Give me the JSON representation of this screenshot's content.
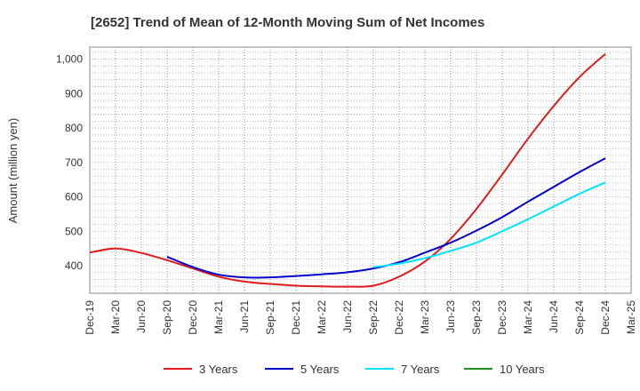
{
  "chart_data": {
    "type": "line",
    "title": "[2652]  Trend of Mean of 12-Month Moving Sum of Net Incomes",
    "xlabel": "",
    "ylabel": "Amount (million yen)",
    "ylim": [
      320,
      1035
    ],
    "yticks": [
      400,
      500,
      600,
      700,
      800,
      900,
      1000
    ],
    "ytick_labels": [
      "400",
      "500",
      "600",
      "700",
      "800",
      "900",
      "1,000"
    ],
    "categories": [
      "Dec-19",
      "Mar-20",
      "Jun-20",
      "Sep-20",
      "Dec-20",
      "Mar-21",
      "Jun-21",
      "Sep-21",
      "Dec-21",
      "Mar-22",
      "Jun-22",
      "Sep-22",
      "Dec-22",
      "Mar-23",
      "Jun-23",
      "Sep-23",
      "Dec-23",
      "Mar-24",
      "Jun-24",
      "Sep-24",
      "Dec-24",
      "Mar-25"
    ],
    "grid": true,
    "legend_position": "bottom",
    "series": [
      {
        "name": "3 Years",
        "color": "#e31a1c",
        "values": [
          438,
          450,
          437,
          416,
          392,
          368,
          354,
          347,
          342,
          340,
          339,
          342,
          368,
          412,
          478,
          565,
          665,
          769,
          864,
          948,
          1015,
          null
        ]
      },
      {
        "name": "5 Years",
        "color": "#0000cc",
        "values": [
          null,
          null,
          null,
          426,
          396,
          374,
          366,
          366,
          370,
          375,
          381,
          392,
          410,
          438,
          467,
          502,
          541,
          586,
          629,
          672,
          712,
          null
        ]
      },
      {
        "name": "7 Years",
        "color": "#00e5ff",
        "values": [
          null,
          null,
          null,
          null,
          null,
          null,
          null,
          null,
          null,
          null,
          null,
          396,
          406,
          422,
          443,
          467,
          500,
          535,
          572,
          609,
          642,
          null
        ]
      },
      {
        "name": "10 Years",
        "color": "#228b22",
        "values": [
          null,
          null,
          null,
          null,
          null,
          null,
          null,
          null,
          null,
          null,
          null,
          null,
          null,
          null,
          null,
          null,
          null,
          null,
          null,
          null,
          null,
          null
        ]
      }
    ]
  }
}
